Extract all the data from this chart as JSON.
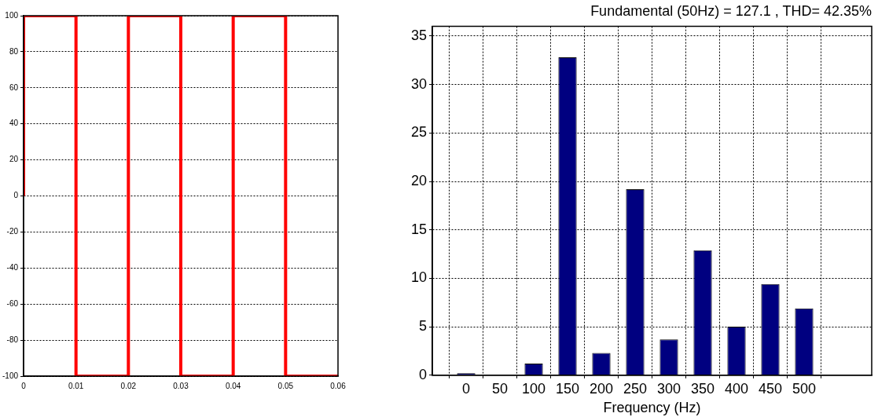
{
  "chart_data": [
    {
      "type": "line",
      "x": [
        0,
        0,
        0.01,
        0.01,
        0.02,
        0.02,
        0.03,
        0.03,
        0.04,
        0.04,
        0.05,
        0.05,
        0.06
      ],
      "series": [
        {
          "color": "#ff0000",
          "values": [
            0,
            100,
            100,
            -100,
            -100,
            100,
            100,
            -100,
            -100,
            100,
            100,
            -100,
            -100
          ]
        }
      ],
      "xlim": [
        0,
        0.06
      ],
      "xticks": [
        0,
        0.01,
        0.02,
        0.03,
        0.04,
        0.05,
        0.06
      ],
      "ylim": [
        -100,
        100
      ],
      "yticks": [
        -100,
        -80,
        -60,
        -40,
        -20,
        0,
        20,
        40,
        60,
        80,
        100
      ],
      "grid": "y",
      "line_style": "solid",
      "marker": "none"
    },
    {
      "type": "bar",
      "title": "Fundamental (50Hz) = 127.1 , THD= 42.35%",
      "xlabel": "Frequency (Hz)",
      "x": [
        0,
        50,
        100,
        150,
        200,
        250,
        300,
        350,
        400,
        450,
        500
      ],
      "series": [
        {
          "color": "#000080",
          "values": [
            0.2,
            null,
            1.2,
            32.8,
            2.3,
            19.2,
            3.7,
            12.9,
            5.0,
            9.4,
            6.9
          ]
        }
      ],
      "xlim": [
        -50,
        600
      ],
      "xticks": [
        0,
        50,
        100,
        150,
        200,
        250,
        300,
        350,
        400,
        450,
        500
      ],
      "ylim": [
        0,
        36
      ],
      "yticks": [
        0,
        5,
        10,
        15,
        20,
        25,
        30,
        35
      ],
      "grid": true
    }
  ]
}
